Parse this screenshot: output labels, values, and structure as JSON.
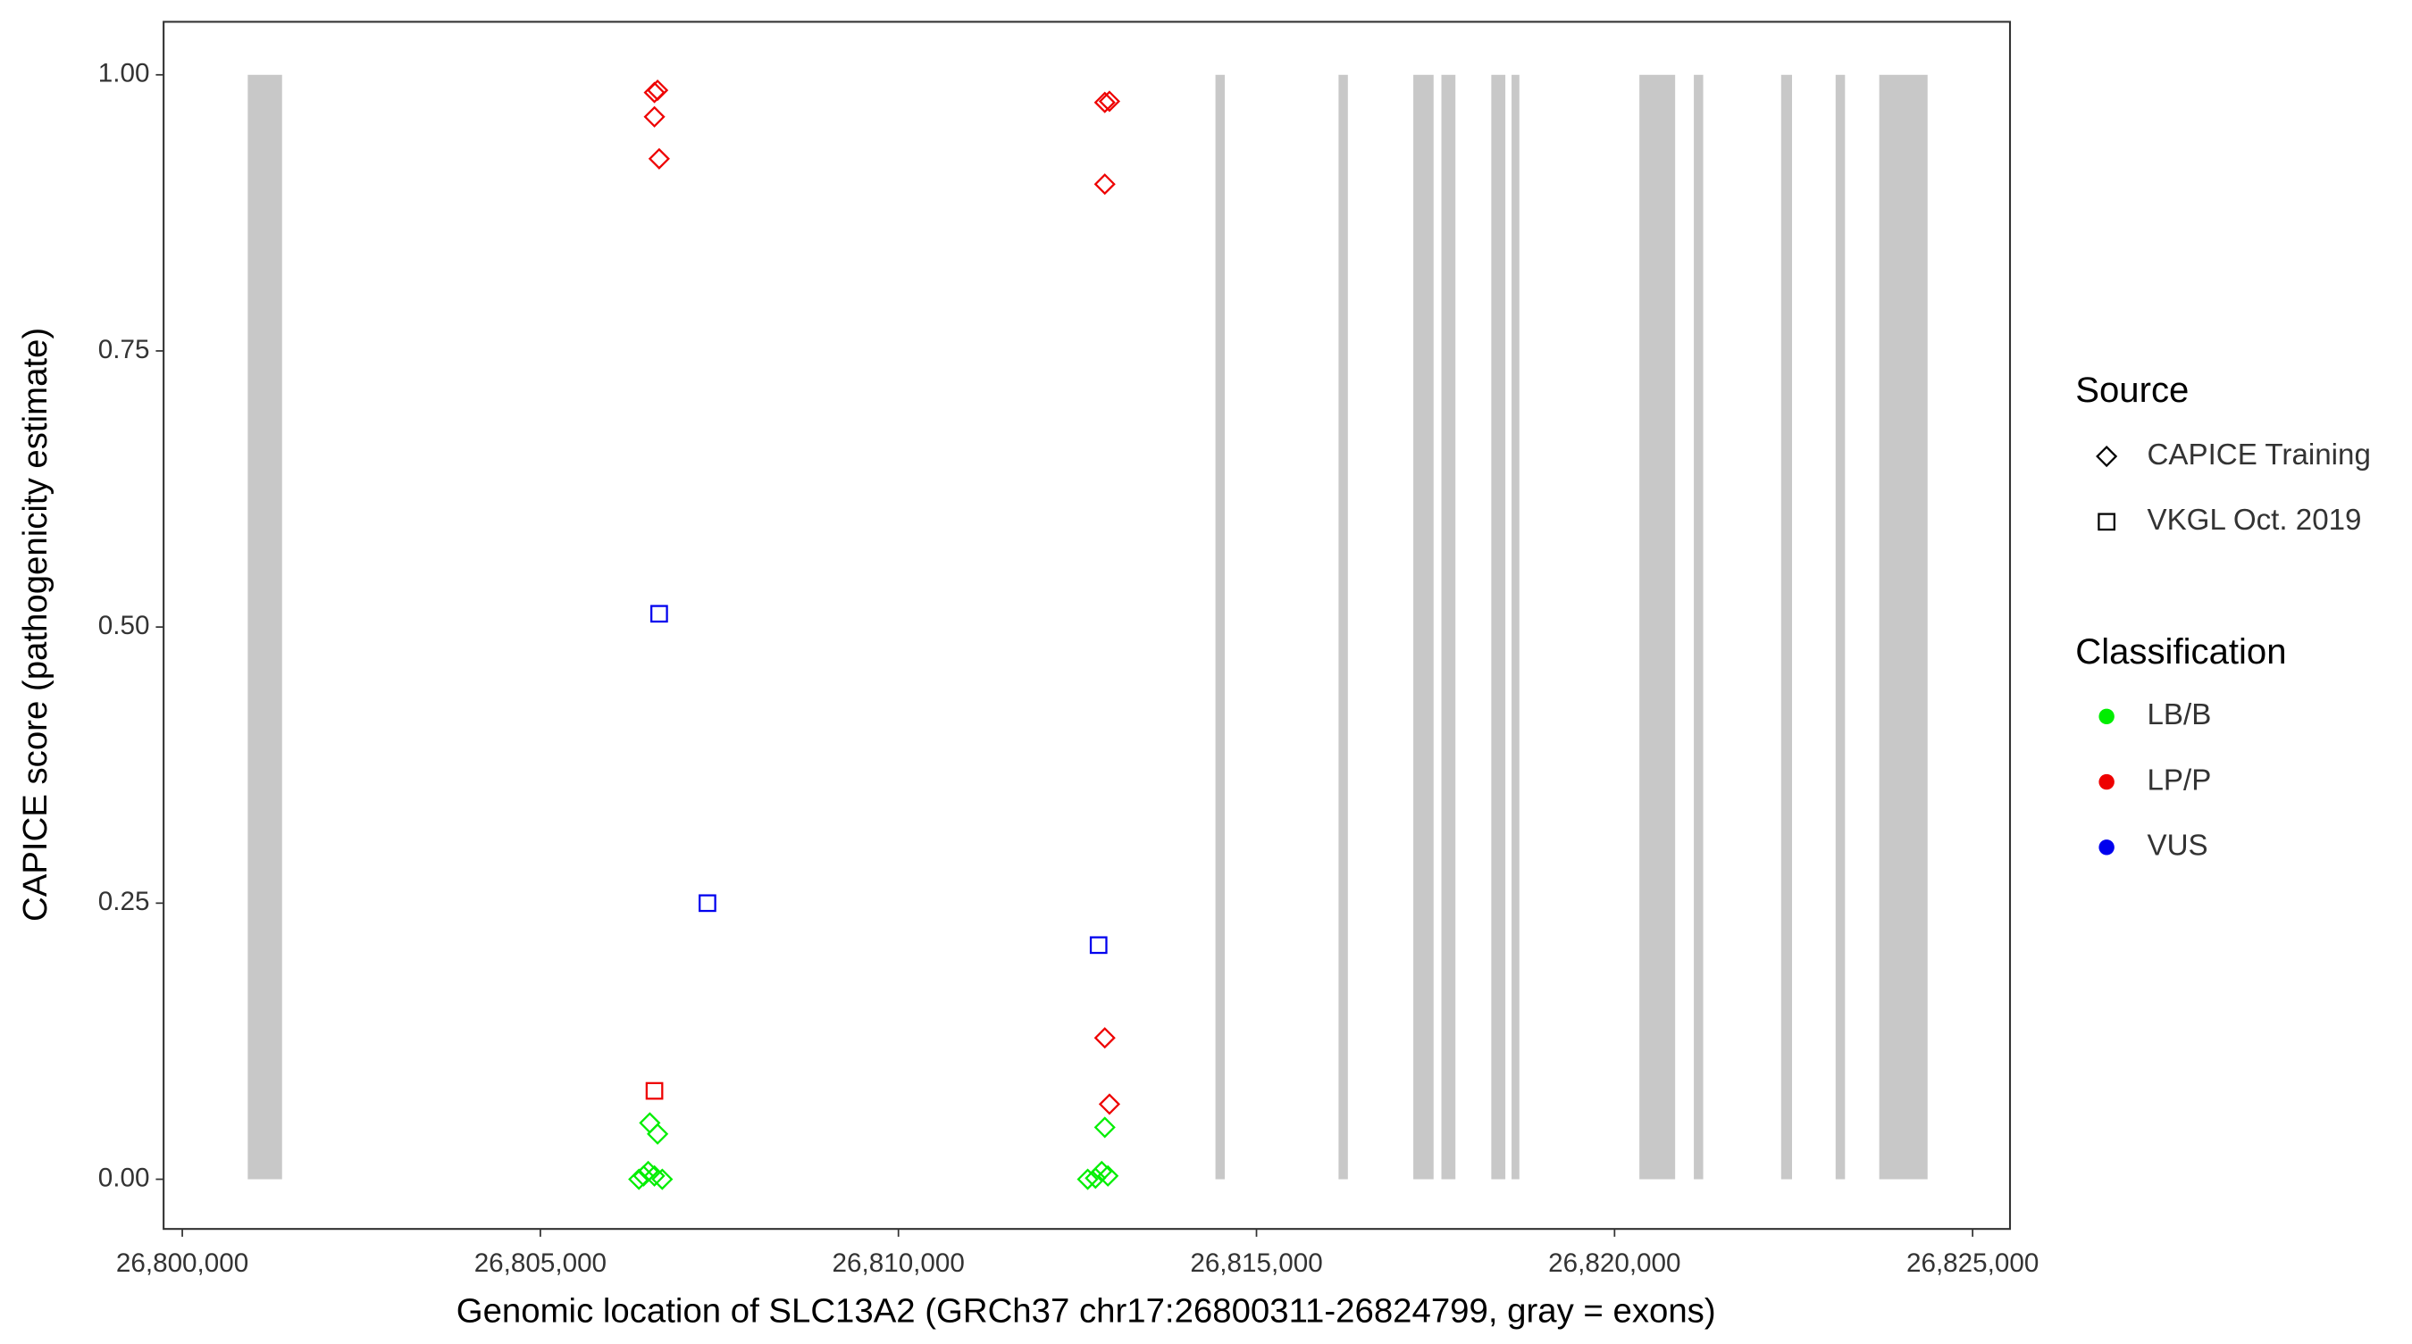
{
  "chart_data": {
    "type": "scatter",
    "xlabel": "Genomic location of SLC13A2 (GRCh37 chr17:26800311-26824799, gray = exons)",
    "ylabel": "CAPICE score (pathogenicity estimate)",
    "xlim": [
      26799739,
      26825522
    ],
    "ylim": [
      -0.045,
      1.048
    ],
    "xticks": [
      {
        "value": 26800000,
        "label": "26,800,000"
      },
      {
        "value": 26805000,
        "label": "26,805,000"
      },
      {
        "value": 26810000,
        "label": "26,810,000"
      },
      {
        "value": 26815000,
        "label": "26,815,000"
      },
      {
        "value": 26820000,
        "label": "26,820,000"
      },
      {
        "value": 26825000,
        "label": "26,825,000"
      }
    ],
    "yticks": [
      {
        "value": 0,
        "label": "0.00"
      },
      {
        "value": 0.25,
        "label": "0.25"
      },
      {
        "value": 0.5,
        "label": "0.50"
      },
      {
        "value": 0.75,
        "label": "0.75"
      },
      {
        "value": 1,
        "label": "1.00"
      }
    ],
    "exon_color": "#c8c8c8",
    "exons": [
      [
        26800914,
        26801393
      ],
      [
        26814427,
        26814557
      ],
      [
        26816146,
        26816276
      ],
      [
        26817190,
        26817473
      ],
      [
        26817582,
        26817778
      ],
      [
        26818279,
        26818475
      ],
      [
        26818562,
        26818671
      ],
      [
        26820347,
        26820846
      ],
      [
        26821107,
        26821238
      ],
      [
        26822326,
        26822478
      ],
      [
        26823087,
        26823218
      ],
      [
        26823696,
        26824371
      ]
    ],
    "source_legend": {
      "title": "Source",
      "items": [
        {
          "name": "CAPICE Training",
          "shape": "diamond"
        },
        {
          "name": "VKGL Oct. 2019",
          "shape": "square"
        }
      ]
    },
    "class_legend": {
      "title": "Classification",
      "items": [
        {
          "name": "LB/B",
          "color": "#00ee00"
        },
        {
          "name": "LP/P",
          "color": "#ee0000"
        },
        {
          "name": "VUS",
          "color": "#0000ee"
        }
      ]
    },
    "series": [
      {
        "shape": "diamond",
        "color": "#ee0000",
        "x": [
          26806637,
          26806593,
          26806593,
          26806659,
          26812882,
          26812947,
          26812882,
          26812882,
          26812947
        ],
        "y": [
          0.986,
          0.984,
          0.962,
          0.924,
          0.975,
          0.976,
          0.901,
          0.128,
          0.068
        ]
      },
      {
        "shape": "square",
        "color": "#ee0000",
        "x": [
          26806593
        ],
        "y": [
          0.08
        ]
      },
      {
        "shape": "square",
        "color": "#0000ee",
        "x": [
          26806659,
          26807333,
          26812795
        ],
        "y": [
          0.512,
          0.25,
          0.212
        ]
      },
      {
        "shape": "diamond",
        "color": "#00ee00",
        "x": [
          26806528,
          26806637,
          26806376,
          26806441,
          26806506,
          26806593,
          26806702,
          26812882,
          26812643,
          26812752,
          26812839,
          26812925
        ],
        "y": [
          0.051,
          0.041,
          0,
          0.003,
          0.007,
          0.003,
          0,
          0.047,
          0,
          0.001,
          0.007,
          0.003
        ]
      }
    ]
  }
}
